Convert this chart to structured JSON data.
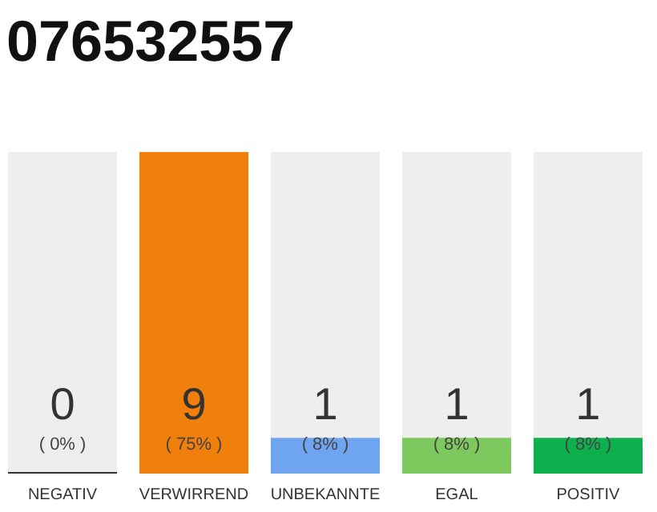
{
  "chart_data": {
    "type": "bar",
    "title": "076532557",
    "categories": [
      "NEGATIV",
      "VERWIRREND",
      "UNBEKANNTE",
      "EGAL",
      "POSITIV"
    ],
    "values": [
      0,
      9,
      1,
      1,
      1
    ],
    "colors": [
      "#333333",
      "#f07f0c",
      "#6fa4f0",
      "#7dc95e",
      "#0db04c"
    ],
    "ylim": [
      0,
      9
    ],
    "data_labels": true,
    "annotations": [
      "( 0% )",
      "( 75% )",
      "( 8% )",
      "( 8% )",
      "( 8% )"
    ]
  }
}
